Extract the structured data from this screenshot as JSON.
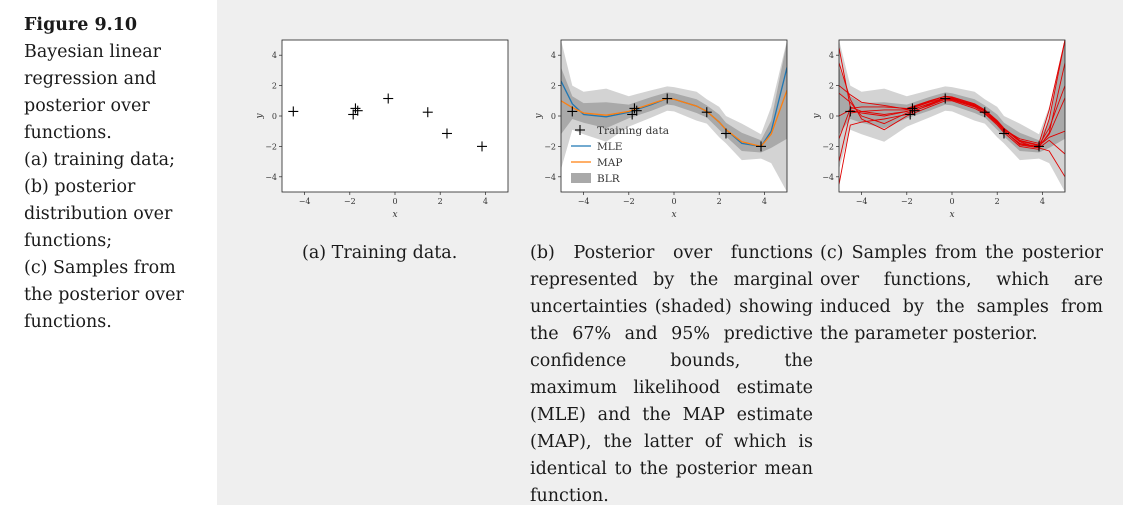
{
  "caption": {
    "figure_number": "Figure 9.10",
    "text_lines": [
      "Bayesian linear",
      "regression and",
      "posterior over",
      "functions.",
      "(a) training data;",
      "(b) posterior",
      "distribution over",
      "functions;",
      "(c) Samples from",
      "the posterior over",
      "functions."
    ]
  },
  "subcaptions": {
    "a": "(a) Training data.",
    "b": "(b) Posterior over functions represented by the marginal uncertainties (shaded) showing the 67% and 95% predictive confidence bounds, the maximum likelihood estimate (MLE) and the MAP estimate (MAP), the latter of which is identical to the posterior mean function.",
    "c": "(c) Samples from the posterior over functions, which are induced by the samples from the parameter posterior."
  },
  "colors": {
    "mle": "#1f77b4",
    "map": "#ff7f0e",
    "band67": "#a9a9a9",
    "band95": "#d3d3d3",
    "samples": "#e00000",
    "points": "#000000"
  },
  "chart_data": [
    {
      "type": "scatter",
      "title": "",
      "xlabel": "x",
      "ylabel": "y",
      "xlim": [
        -5,
        5
      ],
      "ylim": [
        -5,
        5
      ],
      "xticks": [
        -4,
        -2,
        0,
        2,
        4
      ],
      "yticks": [
        -4,
        -2,
        0,
        2,
        4
      ],
      "xtick_labels": [
        "−4",
        "−2",
        "0",
        "2",
        "4"
      ],
      "ytick_labels": [
        "−4",
        "−2",
        "0",
        "2",
        "4"
      ],
      "points": {
        "x": [
          -4.5,
          -1.85,
          -1.75,
          -1.65,
          -0.3,
          1.45,
          2.3,
          3.85
        ],
        "y": [
          0.3,
          0.1,
          0.5,
          0.35,
          1.15,
          0.25,
          -1.15,
          -2.0
        ]
      }
    },
    {
      "type": "line",
      "title": "",
      "xlabel": "x",
      "ylabel": "y",
      "xlim": [
        -5,
        5
      ],
      "ylim": [
        -5,
        5
      ],
      "xticks": [
        -4,
        -2,
        0,
        2,
        4
      ],
      "yticks": [
        -4,
        -2,
        0,
        2,
        4
      ],
      "xtick_labels": [
        "−4",
        "−2",
        "0",
        "2",
        "4"
      ],
      "ytick_labels": [
        "−4",
        "−2",
        "0",
        "2",
        "4"
      ],
      "legend": [
        "Training data",
        "MLE",
        "MAP",
        "BLR"
      ],
      "legend_position": "bottom-left",
      "points": {
        "x": [
          -4.5,
          -1.85,
          -1.75,
          -1.65,
          -0.3,
          1.45,
          2.3,
          3.85
        ],
        "y": [
          0.3,
          0.1,
          0.5,
          0.35,
          1.15,
          0.25,
          -1.15,
          -2.0
        ]
      },
      "series": [
        {
          "name": "MLE",
          "x": [
            -5,
            -4.5,
            -4,
            -3,
            -2,
            -1,
            -0.3,
            0,
            1,
            1.45,
            2,
            2.3,
            3,
            3.85,
            4.3,
            5
          ],
          "y": [
            2.3,
            0.8,
            0.1,
            -0.05,
            0.25,
            0.75,
            1.15,
            1.1,
            0.65,
            0.3,
            -0.4,
            -0.9,
            -1.8,
            -2.0,
            -1.0,
            3.2
          ]
        },
        {
          "name": "MAP",
          "x": [
            -5,
            -4.5,
            -4,
            -3,
            -2,
            -1,
            -0.3,
            0,
            1,
            1.45,
            2,
            2.3,
            3,
            3.85,
            4.3,
            5
          ],
          "y": [
            1.0,
            0.55,
            0.2,
            0.05,
            0.3,
            0.8,
            1.15,
            1.1,
            0.65,
            0.3,
            -0.4,
            -0.9,
            -1.7,
            -2.0,
            -1.2,
            1.7
          ]
        },
        {
          "name": "BLR 67%",
          "x": [
            -5,
            -4.5,
            -4,
            -3,
            -2,
            -1,
            -0.3,
            0,
            1,
            1.45,
            2,
            2.3,
            3,
            3.85,
            4.3,
            5
          ],
          "lower": [
            -1.2,
            -0.2,
            -0.45,
            -0.8,
            -0.15,
            0.35,
            0.75,
            0.7,
            0.2,
            -0.1,
            -0.9,
            -1.35,
            -2.3,
            -2.4,
            -2.1,
            -1.5
          ],
          "upper": [
            3.2,
            1.3,
            0.85,
            0.9,
            0.75,
            1.25,
            1.55,
            1.5,
            1.1,
            0.7,
            0.1,
            -0.45,
            -1.1,
            -1.6,
            -0.3,
            4.9
          ]
        },
        {
          "name": "BLR 95%",
          "x": [
            -5,
            -4.5,
            -4,
            -3,
            -2,
            -1,
            -0.3,
            0,
            1,
            1.45,
            2,
            2.3,
            3,
            3.85,
            4.3,
            5
          ],
          "lower": [
            -3.5,
            -0.9,
            -1.2,
            -1.7,
            -0.7,
            -0.1,
            0.35,
            0.3,
            -0.3,
            -0.5,
            -1.4,
            -1.8,
            -2.9,
            -2.8,
            -3.1,
            -5
          ],
          "upper": [
            5,
            2.0,
            1.6,
            1.8,
            1.3,
            1.7,
            1.95,
            1.9,
            1.6,
            1.1,
            0.6,
            0.0,
            -0.5,
            -1.2,
            0.6,
            5
          ]
        }
      ]
    },
    {
      "type": "line",
      "title": "",
      "xlabel": "x",
      "ylabel": "y",
      "xlim": [
        -5,
        5
      ],
      "ylim": [
        -5,
        5
      ],
      "xticks": [
        -4,
        -2,
        0,
        2,
        4
      ],
      "yticks": [
        -4,
        -2,
        0,
        2,
        4
      ],
      "xtick_labels": [
        "−4",
        "−2",
        "0",
        "2",
        "4"
      ],
      "ytick_labels": [
        "−4",
        "−2",
        "0",
        "2",
        "4"
      ],
      "points": {
        "x": [
          -4.5,
          -1.85,
          -1.75,
          -1.65,
          -0.3,
          1.45,
          2.3,
          3.85
        ],
        "y": [
          0.3,
          0.1,
          0.5,
          0.35,
          1.15,
          0.25,
          -1.15,
          -2.0
        ]
      },
      "bands": {
        "x": [
          -5,
          -4.5,
          -4,
          -3,
          -2,
          -1,
          -0.3,
          0,
          1,
          1.45,
          2,
          2.3,
          3,
          3.85,
          4.3,
          5
        ],
        "lower67": [
          -1.2,
          -0.2,
          -0.45,
          -0.8,
          -0.15,
          0.35,
          0.75,
          0.7,
          0.2,
          -0.1,
          -0.9,
          -1.35,
          -2.3,
          -2.4,
          -2.1,
          -1.5
        ],
        "upper67": [
          3.2,
          1.3,
          0.85,
          0.9,
          0.75,
          1.25,
          1.55,
          1.5,
          1.1,
          0.7,
          0.1,
          -0.45,
          -1.1,
          -1.6,
          -0.3,
          4.9
        ],
        "lower95": [
          -3.5,
          -0.9,
          -1.2,
          -1.7,
          -0.7,
          -0.1,
          0.35,
          0.3,
          -0.3,
          -0.5,
          -1.4,
          -1.8,
          -2.9,
          -2.8,
          -3.1,
          -5
        ],
        "upper95": [
          5,
          2.0,
          1.6,
          1.8,
          1.3,
          1.7,
          1.95,
          1.9,
          1.6,
          1.1,
          0.6,
          0.0,
          -0.5,
          -1.2,
          0.6,
          5
        ]
      },
      "samples": {
        "x": [
          -5,
          -4.5,
          -4,
          -3,
          -2,
          -1,
          -0.3,
          0,
          1,
          1.45,
          2,
          2.3,
          3,
          3.85,
          4.3,
          5
        ],
        "series": [
          [
            -3.0,
            0.2,
            0.3,
            0.4,
            0.4,
            0.9,
            1.2,
            1.15,
            0.7,
            0.3,
            -0.45,
            -0.95,
            -1.9,
            -2.1,
            -1.6,
            -2.5
          ],
          [
            -1.5,
            0.5,
            0.6,
            0.6,
            0.5,
            1.0,
            1.3,
            1.25,
            0.8,
            0.4,
            -0.3,
            -0.8,
            -1.6,
            -1.9,
            -0.8,
            2.0
          ],
          [
            1.5,
            0.9,
            0.0,
            -0.5,
            0.2,
            0.7,
            1.1,
            1.05,
            0.6,
            0.2,
            -0.5,
            -1.0,
            -1.8,
            -2.0,
            -1.2,
            1.2
          ],
          [
            3.5,
            1.1,
            -0.2,
            -0.9,
            0.0,
            0.6,
            1.0,
            1.0,
            0.5,
            0.15,
            -0.6,
            -1.1,
            -2.0,
            -2.2,
            -0.2,
            5.0
          ],
          [
            4.5,
            0.6,
            0.3,
            0.1,
            0.3,
            0.8,
            1.2,
            1.1,
            0.7,
            0.35,
            -0.4,
            -0.9,
            -1.5,
            -1.8,
            0.4,
            5.0
          ],
          [
            -4.5,
            -0.6,
            -0.4,
            -0.2,
            0.1,
            0.75,
            1.15,
            1.1,
            0.65,
            0.3,
            -0.35,
            -0.85,
            -1.7,
            -2.1,
            -2.3,
            -4.0
          ],
          [
            2.0,
            1.4,
            0.9,
            0.7,
            0.45,
            0.95,
            1.3,
            1.2,
            0.75,
            0.4,
            -0.35,
            -0.85,
            -1.65,
            -1.95,
            -1.4,
            -1.0
          ],
          [
            0.0,
            0.4,
            0.2,
            0.0,
            0.3,
            0.8,
            1.15,
            1.1,
            0.65,
            0.3,
            -0.45,
            -0.95,
            -1.85,
            -2.05,
            -1.1,
            3.5
          ]
        ]
      }
    }
  ]
}
